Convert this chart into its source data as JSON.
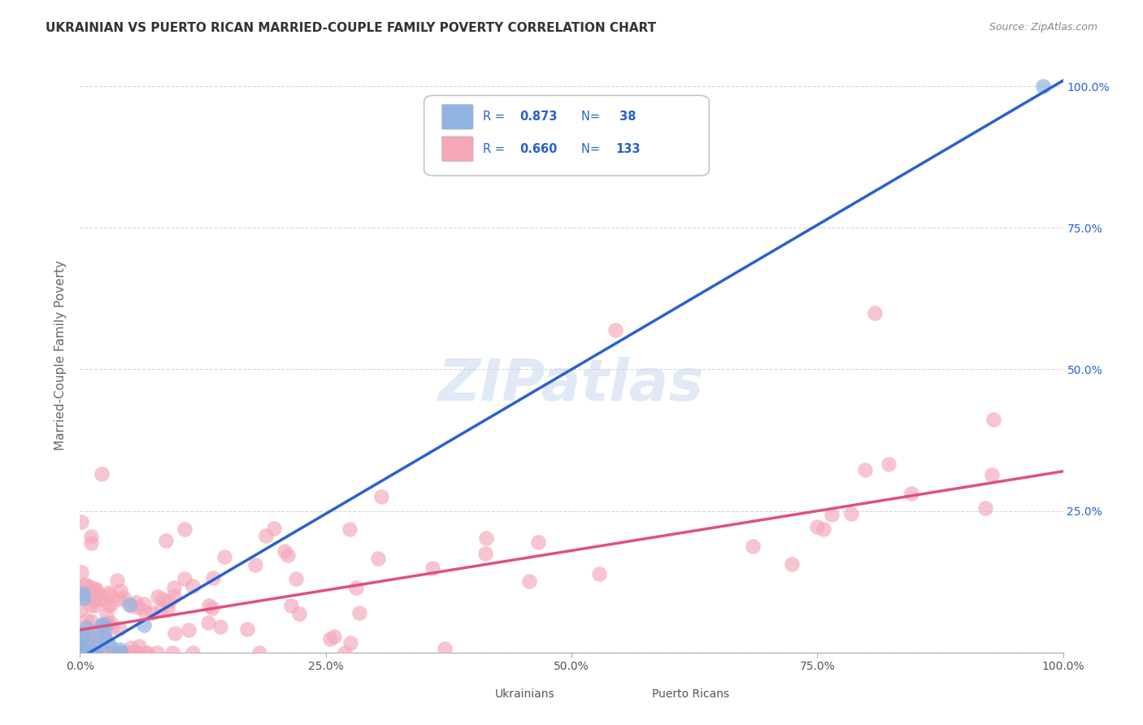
{
  "title": "UKRAINIAN VS PUERTO RICAN MARRIED-COUPLE FAMILY POVERTY CORRELATION CHART",
  "source": "Source: ZipAtlas.com",
  "ylabel": "Married-Couple Family Poverty",
  "watermark": "ZIPatlas",
  "ukr_R": 0.873,
  "ukr_N": 38,
  "pr_R": 0.66,
  "pr_N": 133,
  "ukr_color": "#92b4e3",
  "ukr_line_color": "#2962cc",
  "pr_color": "#f4a7b9",
  "pr_line_color": "#e05080",
  "legend_text_color": "#2962cc",
  "background_color": "#ffffff",
  "grid_color": "#cccccc",
  "ukr_slope": 1.02,
  "ukr_intercept": -0.01,
  "pr_slope": 0.28,
  "pr_intercept": 0.04
}
